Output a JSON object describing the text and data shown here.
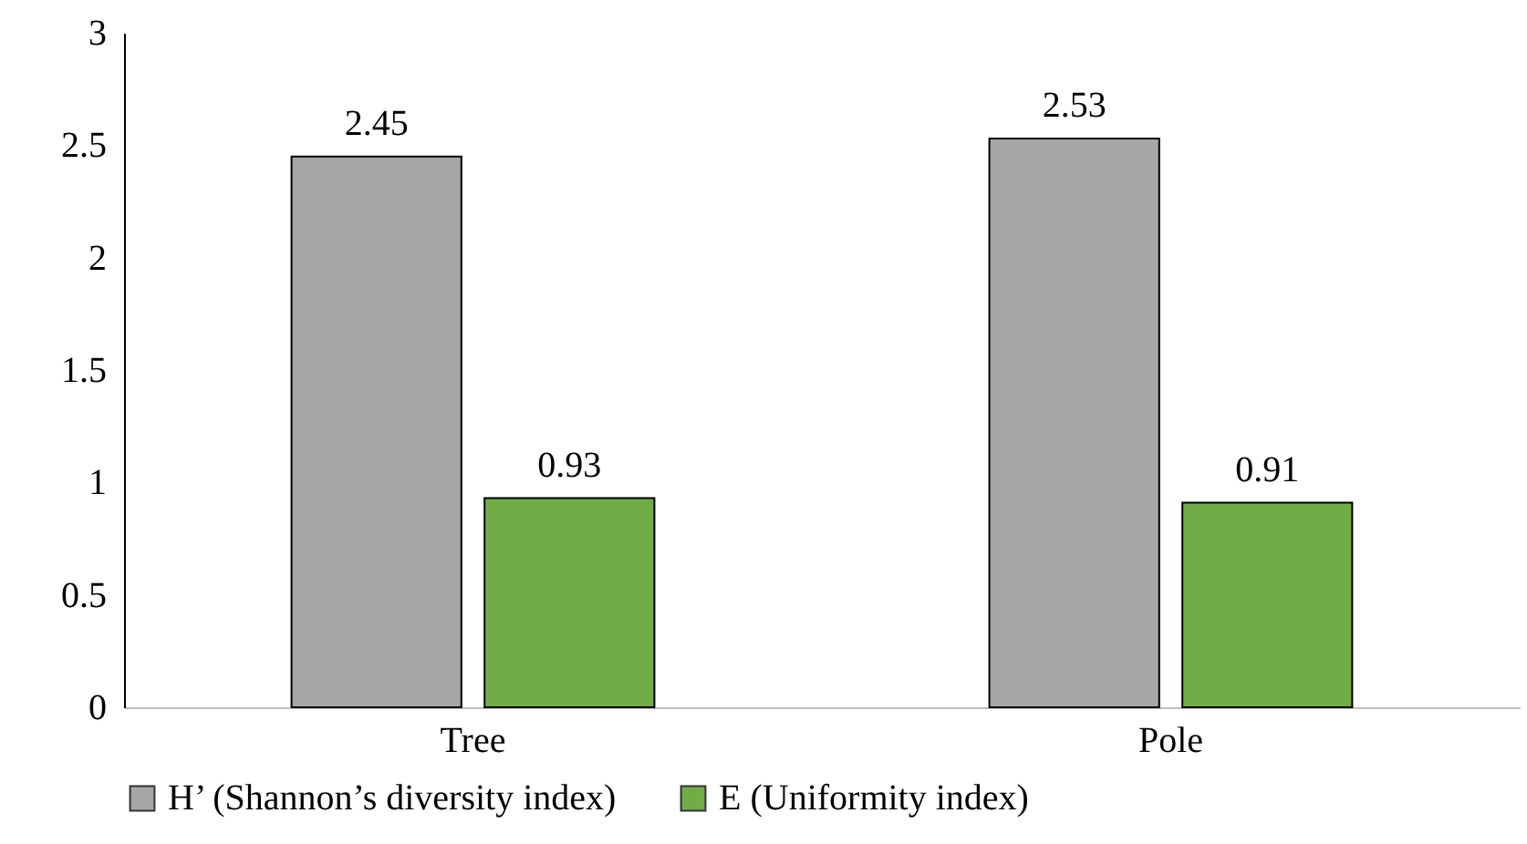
{
  "chart_data": {
    "type": "bar",
    "categories": [
      "Tree",
      "Pole"
    ],
    "series": [
      {
        "name": "H’ (Shannon’s diversity index)",
        "color": "#a6a6a6",
        "values": [
          2.45,
          2.53
        ]
      },
      {
        "name": "E (Uniformity index)",
        "color": "#70ad47",
        "values": [
          0.93,
          0.91
        ]
      }
    ],
    "ylim": [
      0,
      3
    ],
    "yticks": [
      0,
      0.5,
      1,
      1.5,
      2,
      2.5,
      3
    ],
    "data_labels": true,
    "grid": false,
    "legend": "bottom"
  }
}
